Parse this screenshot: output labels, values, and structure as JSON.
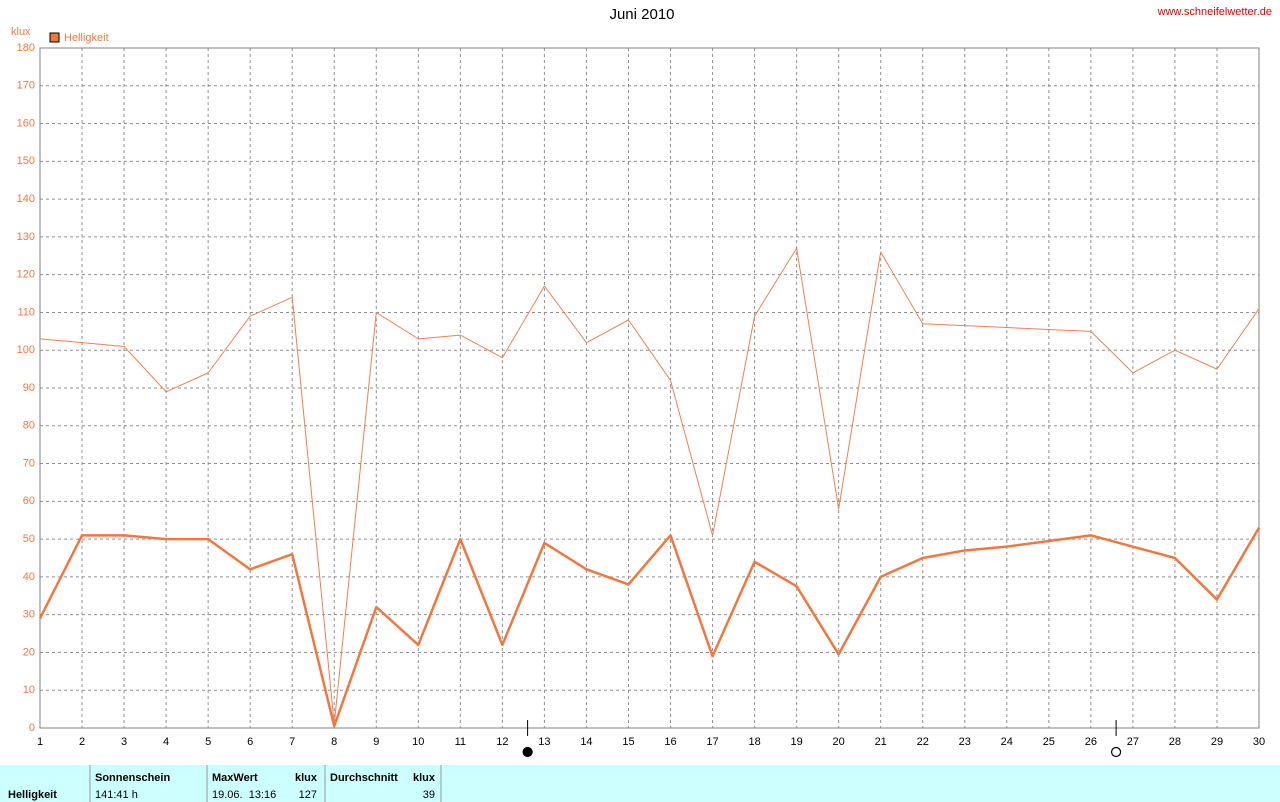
{
  "chart_data": {
    "type": "line",
    "title": "Juni 2010",
    "source": "www.schneifelwetter.de",
    "y_label": "klux",
    "legend": "Helligkeit",
    "legend_color": "#f07840",
    "x": [
      1,
      2,
      3,
      4,
      5,
      6,
      7,
      8,
      9,
      10,
      11,
      12,
      13,
      14,
      15,
      16,
      17,
      18,
      19,
      20,
      21,
      22,
      23,
      24,
      25,
      26,
      27,
      28,
      29,
      30
    ],
    "xlim": [
      1,
      30
    ],
    "xticks": [
      1,
      2,
      3,
      4,
      5,
      6,
      7,
      8,
      9,
      10,
      11,
      12,
      13,
      14,
      15,
      16,
      17,
      18,
      19,
      20,
      21,
      22,
      23,
      24,
      25,
      26,
      27,
      28,
      29,
      30
    ],
    "ylim": [
      0,
      180
    ],
    "yticks": [
      0,
      10,
      20,
      30,
      40,
      50,
      60,
      70,
      80,
      90,
      100,
      110,
      120,
      130,
      140,
      150,
      160,
      170,
      180
    ],
    "grid": true,
    "series": [
      {
        "color": "#f08050",
        "line_width": 1,
        "values": [
          103,
          102,
          101,
          89,
          94,
          109,
          114,
          1,
          110,
          103,
          104,
          98,
          117,
          102,
          108,
          92,
          51,
          109,
          127,
          58,
          126,
          107,
          106.5,
          106,
          105.5,
          105,
          94,
          100,
          95,
          111
        ]
      },
      {
        "color": "#f07840",
        "line_width": 2.5,
        "values": [
          29,
          51,
          51,
          50,
          50,
          42,
          46,
          0.5,
          32,
          22,
          50,
          22,
          49,
          42,
          38,
          51,
          19,
          44,
          37.5,
          19.5,
          40,
          45,
          47,
          48,
          49.5,
          51,
          48,
          45,
          34,
          53
        ]
      }
    ],
    "moon_phases": [
      {
        "x": 12.6,
        "phase": "new"
      },
      {
        "x": 26.6,
        "phase": "full"
      }
    ]
  },
  "summary": {
    "label": "Helligkeit",
    "columns": [
      {
        "header": "Sonnenschein",
        "value": "141:41 h"
      },
      {
        "header": "MaxWert",
        "unit": "klux",
        "date": "19.06.  13:16",
        "value": "127"
      },
      {
        "header": "Durchschnitt",
        "unit": "klux",
        "value": "39"
      }
    ]
  }
}
